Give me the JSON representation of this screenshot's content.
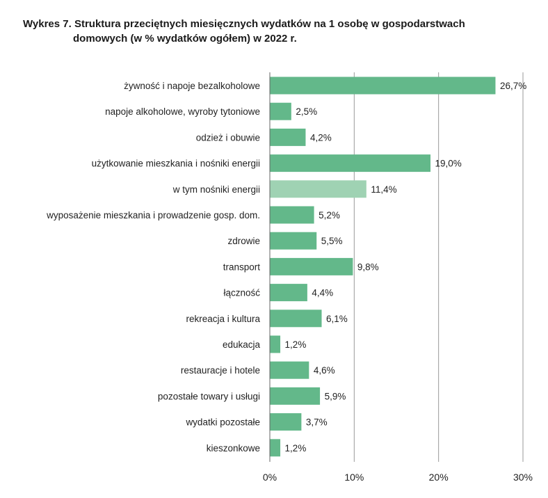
{
  "chart_data": {
    "type": "bar",
    "orientation": "horizontal",
    "title": "Wykres 7. Struktura przeciętnych miesięcznych wydatków na 1 osobę w gospodarstwach domowych (w % wydatków ogółem) w 2022 r.",
    "title_line1": "Wykres 7. Struktura przeciętnych miesięcznych wydatków na 1 osobę w gospodarstwach",
    "title_line2": "domowych (w % wydatków ogółem) w 2022 r.",
    "categories": [
      "żywność i napoje bezalkoholowe",
      "napoje alkoholowe, wyroby tytoniowe",
      "odzież i obuwie",
      "użytkowanie mieszkania i nośniki energii",
      "w tym nośniki energii",
      "wyposażenie mieszkania i prowadzenie gosp. dom.",
      "zdrowie",
      "transport",
      "łączność",
      "rekreacja i kultura",
      "edukacja",
      "restauracje i hotele",
      "pozostałe towary i usługi",
      "wydatki pozostałe",
      "kieszonkowe"
    ],
    "values": [
      26.7,
      2.5,
      4.2,
      19.0,
      11.4,
      5.2,
      5.5,
      9.8,
      4.4,
      6.1,
      1.2,
      4.6,
      5.9,
      3.7,
      1.2
    ],
    "value_labels": [
      "26,7%",
      "2,5%",
      "4,2%",
      "19,0%",
      "11,4%",
      "5,2%",
      "5,5%",
      "9,8%",
      "4,4%",
      "6,1%",
      "1,2%",
      "4,6%",
      "5,9%",
      "3,7%",
      "1,2%"
    ],
    "xlim": [
      0,
      30
    ],
    "x_ticks": [
      0,
      10,
      20,
      30
    ],
    "x_tick_labels": [
      "0%",
      "10%",
      "20%",
      "30%"
    ],
    "xlabel": "",
    "ylabel": "",
    "grid": "vertical",
    "legend": "none",
    "colors": {
      "bar": "#63b88a",
      "bar_highlight": "#9fd2b3",
      "grid": "#999999"
    },
    "highlight_index": 4
  }
}
